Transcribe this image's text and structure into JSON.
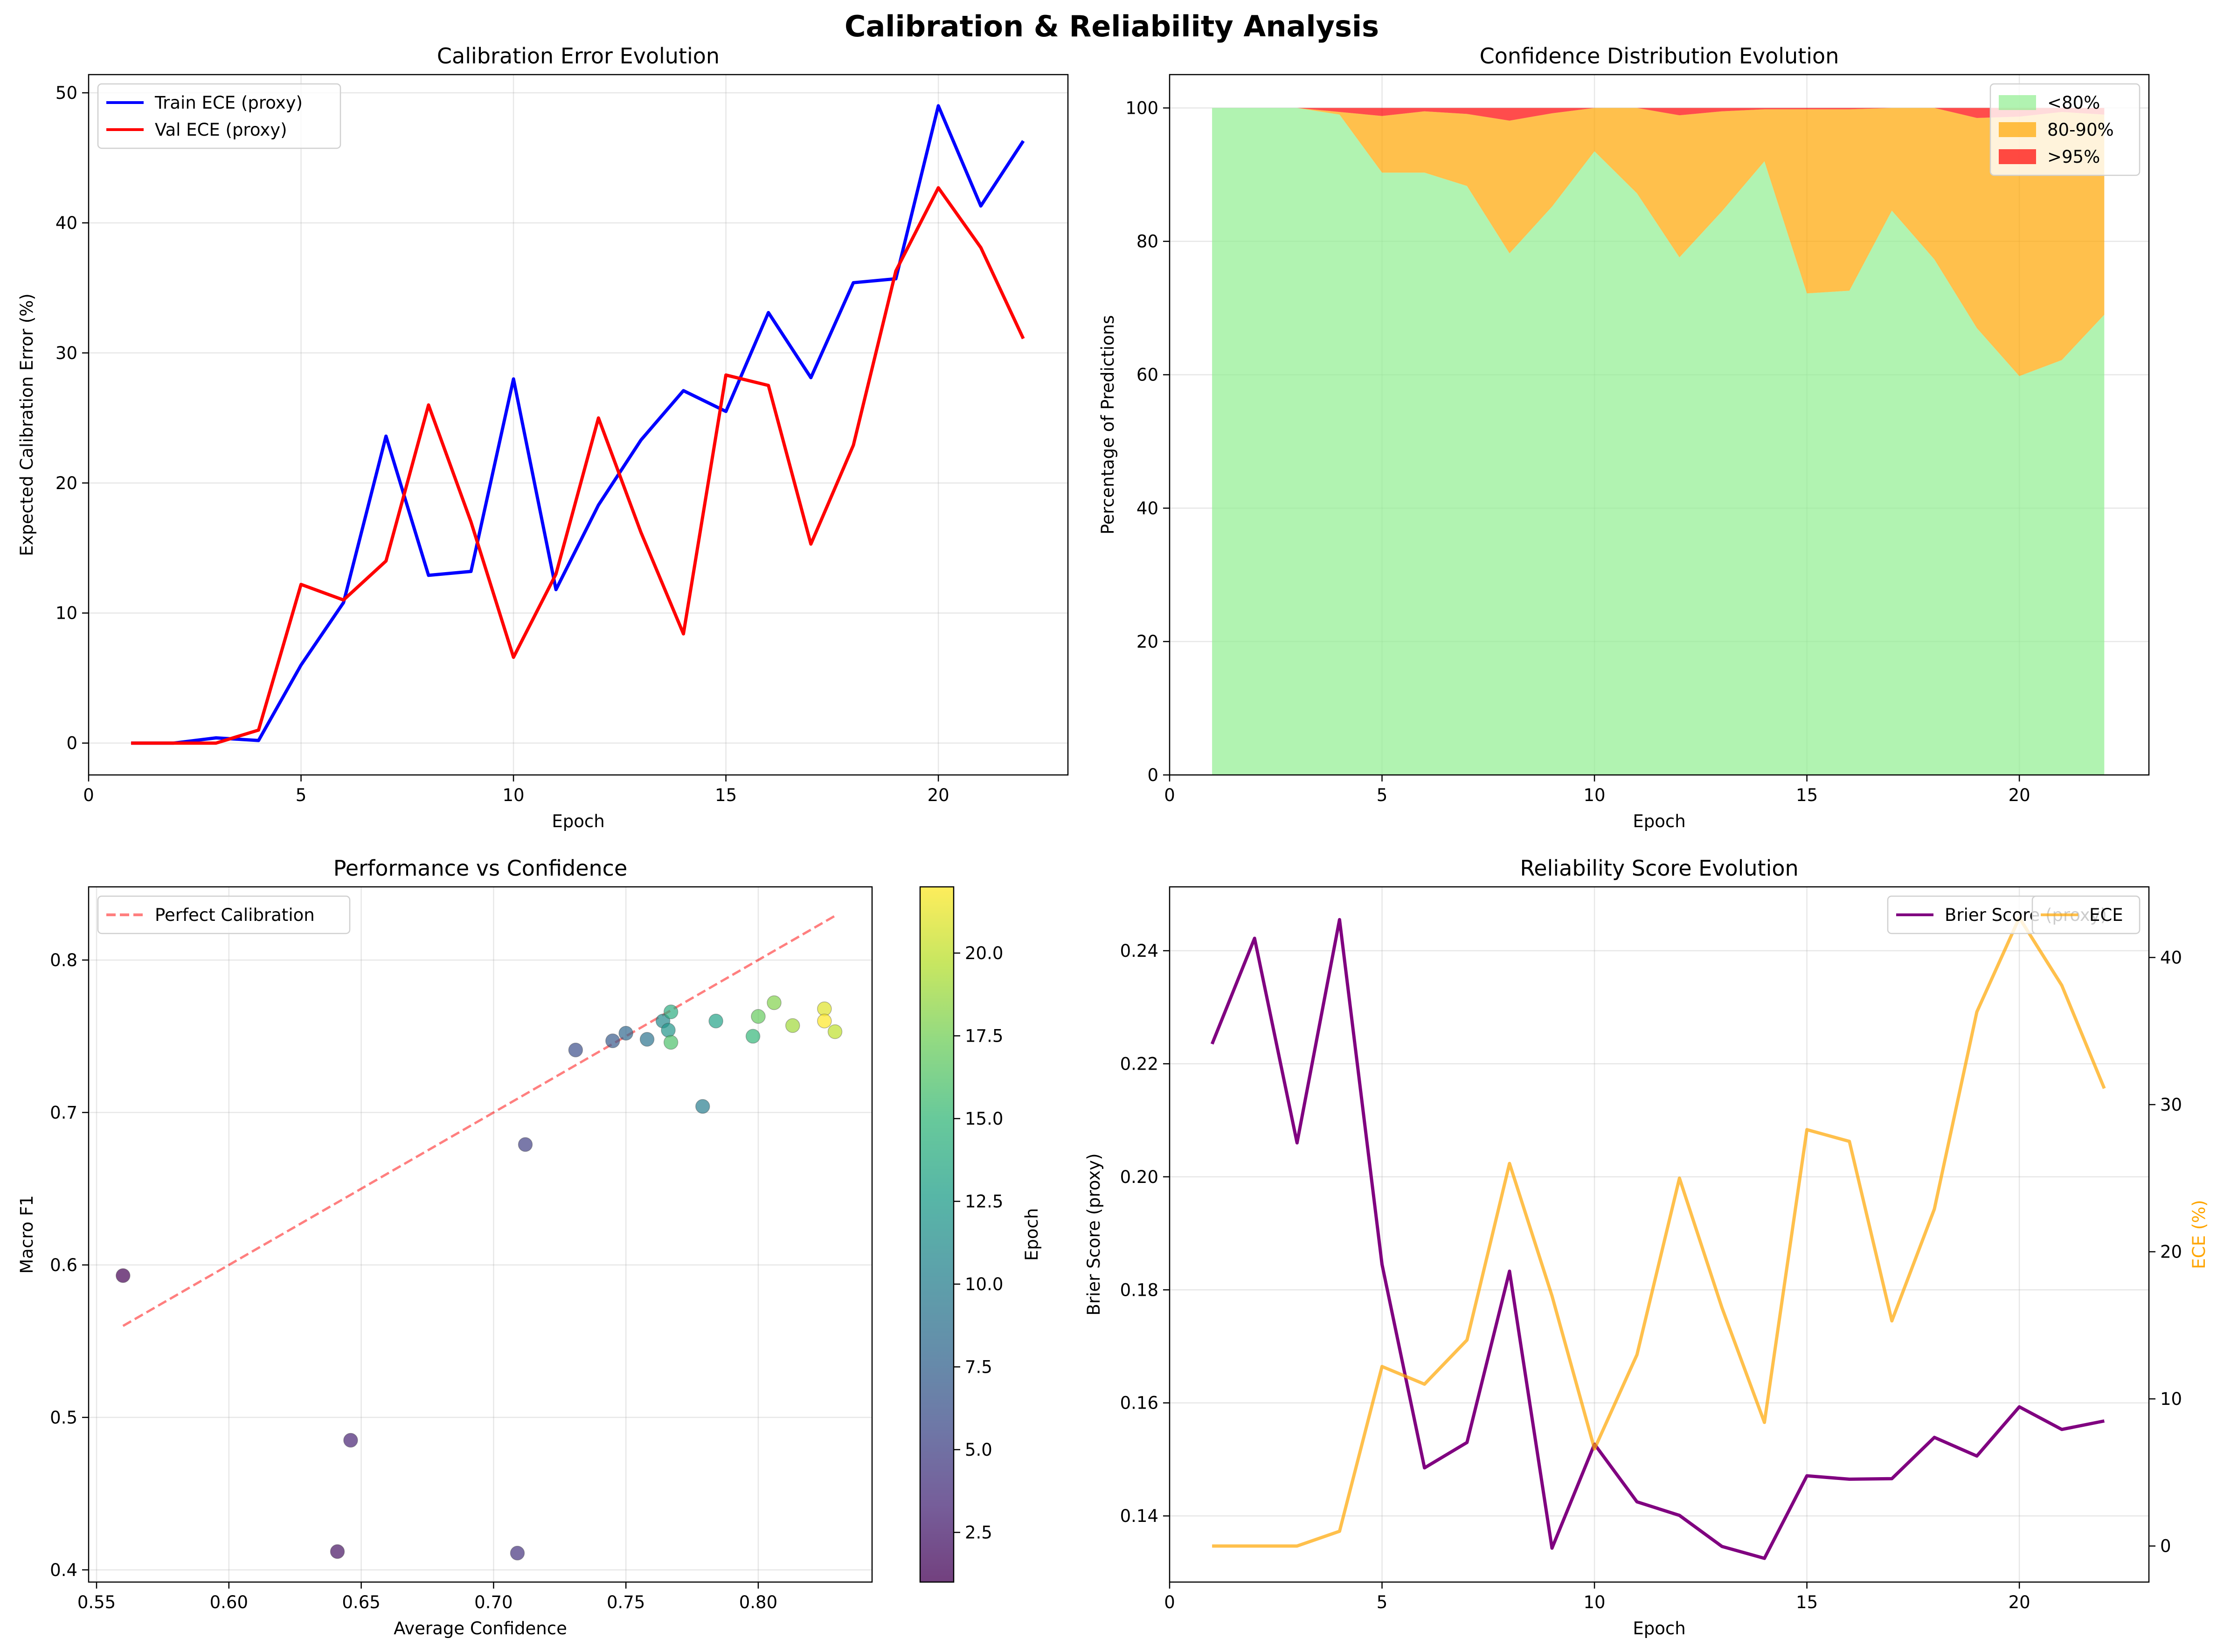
{
  "title": "Calibration & Reliability Analysis",
  "chart_data": [
    {
      "id": "ece",
      "type": "line",
      "title": "Calibration Error Evolution",
      "xlabel": "Epoch",
      "ylabel": "Expected Calibration Error (%)",
      "xlim": [
        0,
        23.05
      ],
      "ylim": [
        -2.45,
        51.4
      ],
      "xticks": [
        0,
        5,
        10,
        15,
        20
      ],
      "yticks": [
        0,
        10,
        20,
        30,
        40,
        50
      ],
      "grid": true,
      "legend_position": "upper left",
      "x": [
        1,
        2,
        3,
        4,
        5,
        6,
        7,
        8,
        9,
        10,
        11,
        12,
        13,
        14,
        15,
        16,
        17,
        18,
        19,
        20,
        21,
        22
      ],
      "series": [
        {
          "name": "Train ECE (proxy)",
          "color": "#0000ff",
          "values": [
            0,
            0,
            0.4,
            0.2,
            6,
            10.8,
            23.6,
            12.9,
            13.2,
            28,
            11.8,
            18.3,
            23.3,
            27.1,
            25.5,
            33.1,
            28.1,
            35.4,
            35.7,
            49,
            41.3,
            46.3
          ]
        },
        {
          "name": "Val ECE (proxy)",
          "color": "#ff0000",
          "values": [
            0,
            0,
            0,
            1,
            12.2,
            11,
            14,
            26,
            17,
            6.6,
            13,
            25,
            16.2,
            8.4,
            28.3,
            27.5,
            15.3,
            22.9,
            36.3,
            42.7,
            38.1,
            31.1
          ]
        }
      ]
    },
    {
      "id": "conf",
      "type": "area",
      "stacked": true,
      "title": "Confidence Distribution Evolution",
      "xlabel": "Epoch",
      "ylabel": "Percentage of Predictions",
      "xlim": [
        0,
        23.05
      ],
      "ylim": [
        0,
        105
      ],
      "xticks": [
        0,
        5,
        10,
        15,
        20
      ],
      "yticks": [
        0,
        20,
        40,
        60,
        80,
        100
      ],
      "grid": true,
      "legend_position": "upper right",
      "x": [
        1,
        2,
        3,
        4,
        5,
        6,
        7,
        8,
        9,
        10,
        11,
        12,
        13,
        14,
        15,
        16,
        17,
        18,
        19,
        20,
        21,
        22
      ],
      "series": [
        {
          "name": "<80%",
          "color": "#90ee90",
          "opacity": 0.7,
          "values": [
            100,
            100,
            100,
            99,
            90.3,
            90.3,
            88.3,
            78.2,
            85.2,
            93.5,
            87.2,
            77.6,
            84.5,
            92,
            72.2,
            72.6,
            84.6,
            77.3,
            67,
            59.8,
            62.2,
            69
          ]
        },
        {
          "name": "80-90%",
          "color": "#ffa500",
          "opacity": 0.7,
          "values": [
            0,
            0,
            0,
            0.4,
            8.5,
            9.2,
            10.8,
            19.9,
            14,
            6.5,
            12.8,
            21.3,
            15,
            7.8,
            27.6,
            27.2,
            15.4,
            22.7,
            31.5,
            38.9,
            37.2,
            30
          ]
        },
        {
          "name": ">95%",
          "color": "#ff0000",
          "opacity": 0.7,
          "values": [
            0,
            0,
            0,
            0.6,
            1.2,
            0.5,
            0.9,
            1.9,
            0.8,
            0,
            0,
            1.1,
            0.5,
            0.2,
            0.2,
            0.2,
            0,
            0,
            1.5,
            1.3,
            0.6,
            1
          ]
        }
      ]
    },
    {
      "id": "perf",
      "type": "scatter",
      "title": "Performance vs Confidence",
      "xlabel": "Average Confidence",
      "ylabel": "Macro F1",
      "xlim": [
        0.547,
        0.843
      ],
      "ylim": [
        0.392,
        0.848
      ],
      "xticks": [
        0.55,
        0.6,
        0.65,
        0.7,
        0.75,
        0.8
      ],
      "xtick_labels": [
        "0.55",
        "0.60",
        "0.65",
        "0.70",
        "0.75",
        "0.80"
      ],
      "yticks": [
        0.4,
        0.5,
        0.6,
        0.7,
        0.8
      ],
      "ytick_labels": [
        "0.4",
        "0.5",
        "0.6",
        "0.7",
        "0.8"
      ],
      "grid": true,
      "legend_position": "upper left",
      "reference_line": {
        "name": "Perfect Calibration",
        "color": "#ff0000",
        "x": [
          0.56,
          0.829
        ],
        "y": [
          0.56,
          0.829
        ]
      },
      "colorbar": {
        "label": "Epoch",
        "range": [
          1,
          22
        ],
        "ticks": [
          2.5,
          5.0,
          7.5,
          10.0,
          12.5,
          15.0,
          17.5,
          20.0
        ],
        "tick_labels": [
          "2.5",
          "5.0",
          "7.5",
          "10.0",
          "12.5",
          "15.0",
          "17.5",
          "20.0"
        ],
        "colormap": "viridis"
      },
      "points": [
        {
          "epoch": 1,
          "x": 0.56,
          "y": 0.593
        },
        {
          "epoch": 2,
          "x": 0.641,
          "y": 0.412
        },
        {
          "epoch": 3,
          "x": 0.646,
          "y": 0.485
        },
        {
          "epoch": 4,
          "x": 0.709,
          "y": 0.411
        },
        {
          "epoch": 5,
          "x": 0.712,
          "y": 0.679
        },
        {
          "epoch": 6,
          "x": 0.731,
          "y": 0.741
        },
        {
          "epoch": 7,
          "x": 0.745,
          "y": 0.747
        },
        {
          "epoch": 8,
          "x": 0.75,
          "y": 0.752
        },
        {
          "epoch": 9,
          "x": 0.758,
          "y": 0.748
        },
        {
          "epoch": 10,
          "x": 0.779,
          "y": 0.704
        },
        {
          "epoch": 11,
          "x": 0.764,
          "y": 0.76
        },
        {
          "epoch": 12,
          "x": 0.766,
          "y": 0.754
        },
        {
          "epoch": 13,
          "x": 0.784,
          "y": 0.76
        },
        {
          "epoch": 14,
          "x": 0.767,
          "y": 0.766
        },
        {
          "epoch": 15,
          "x": 0.798,
          "y": 0.75
        },
        {
          "epoch": 16,
          "x": 0.767,
          "y": 0.746
        },
        {
          "epoch": 17,
          "x": 0.8,
          "y": 0.763
        },
        {
          "epoch": 18,
          "x": 0.806,
          "y": 0.772
        },
        {
          "epoch": 19,
          "x": 0.813,
          "y": 0.757
        },
        {
          "epoch": 20,
          "x": 0.829,
          "y": 0.753
        },
        {
          "epoch": 21,
          "x": 0.825,
          "y": 0.768
        },
        {
          "epoch": 22,
          "x": 0.825,
          "y": 0.76
        }
      ]
    },
    {
      "id": "rel",
      "type": "line",
      "title": "Reliability Score Evolution",
      "xlabel": "Epoch",
      "ylabel": "Brier Score (proxy)",
      "y2label": "ECE (%)",
      "xlim": [
        0,
        23.05
      ],
      "ylim": [
        0.1283,
        0.2513
      ],
      "y2lim": [
        -2.45,
        44.8
      ],
      "xticks": [
        0,
        5,
        10,
        15,
        20
      ],
      "yticks": [
        0.14,
        0.16,
        0.18,
        0.2,
        0.22,
        0.24
      ],
      "ytick_labels": [
        "0.14",
        "0.16",
        "0.18",
        "0.20",
        "0.22",
        "0.24"
      ],
      "y2ticks": [
        0,
        10,
        20,
        30,
        40
      ],
      "grid": true,
      "legend_position": "upper right",
      "x": [
        1,
        2,
        3,
        4,
        5,
        6,
        7,
        8,
        9,
        10,
        11,
        12,
        13,
        14,
        15,
        16,
        17,
        18,
        19,
        20,
        21,
        22
      ],
      "series": [
        {
          "name": "Brier Score (proxy)",
          "color": "#800080",
          "axis": "left",
          "values": [
            0.2235,
            0.2422,
            0.206,
            0.2455,
            0.1845,
            0.1485,
            0.153,
            0.1833,
            0.1343,
            0.1527,
            0.1425,
            0.1401,
            0.1346,
            0.1325,
            0.1471,
            0.1465,
            0.1466,
            0.1539,
            0.1506,
            0.1593,
            0.1553,
            0.1568
          ]
        },
        {
          "name": "ECE",
          "color": "#ffa500",
          "axis": "right",
          "values": [
            0,
            0,
            0,
            1,
            12.2,
            11,
            14,
            26,
            17,
            6.6,
            13,
            25,
            16.2,
            8.4,
            28.3,
            27.5,
            15.3,
            22.9,
            36.3,
            42.7,
            38.1,
            31.1
          ]
        }
      ]
    }
  ]
}
